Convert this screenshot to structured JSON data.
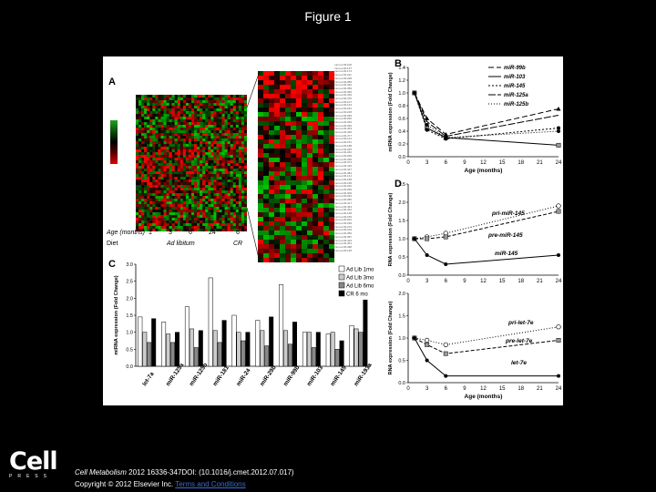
{
  "page_title": "Figure 1",
  "footer": {
    "journal": "Cell Metabolism",
    "citation": " 2012 16336-347DOI: (10.1016/j.cmet.2012.07.017)",
    "copyright": "Copyright © 2012 Elsevier Inc.",
    "terms_link": "Terms and Conditions"
  },
  "logo": {
    "word": "Cell",
    "press": "PRESS"
  },
  "panel_labels": {
    "a": "A",
    "b": "B",
    "c": "C",
    "d": "D"
  },
  "panel_a": {
    "age_label": "Age (months)",
    "age_values": [
      "1",
      "3",
      "6",
      "24",
      "6"
    ],
    "diet_label": "Diet",
    "diet_values": [
      "Ad libitum",
      "CR"
    ]
  },
  "colors": {
    "heat_high": "#e00000",
    "heat_low": "#1fa31f",
    "heat_mid": "#000000"
  },
  "chart_data": [
    {
      "id": "panel-b",
      "type": "line",
      "xlabel": "Age (months)",
      "ylabel": "miRNA expression (Fold Change)",
      "xlim": [
        0,
        24
      ],
      "ylim": [
        0,
        1.4
      ],
      "xticks": [
        0,
        3,
        6,
        9,
        12,
        15,
        18,
        21,
        24
      ],
      "yticks": [
        0,
        0.2,
        0.4,
        0.6,
        0.8,
        1.0,
        1.2,
        1.4
      ],
      "legend_position": "top-right",
      "series": [
        {
          "name": "miR-99b",
          "x": [
            1,
            3,
            6,
            24
          ],
          "values": [
            1.0,
            0.6,
            0.35,
            0.75
          ],
          "dash": "6,3",
          "marker": "triangle"
        },
        {
          "name": "miR-103",
          "x": [
            1,
            3,
            6,
            24
          ],
          "values": [
            1.0,
            0.45,
            0.3,
            0.18
          ],
          "dash": "",
          "marker": "square"
        },
        {
          "name": "miR-145",
          "x": [
            1,
            3,
            6,
            24
          ],
          "values": [
            1.0,
            0.42,
            0.28,
            0.45
          ],
          "dash": "2,2",
          "marker": "circle"
        },
        {
          "name": "miR-125a",
          "x": [
            1,
            3,
            6,
            24
          ],
          "values": [
            1.0,
            0.55,
            0.32,
            0.65
          ],
          "dash": "8,2",
          "marker": "none"
        },
        {
          "name": "miR-125b",
          "x": [
            1,
            3,
            6,
            24
          ],
          "values": [
            1.0,
            0.5,
            0.3,
            0.4
          ],
          "dash": "1,2",
          "marker": "circle"
        }
      ]
    },
    {
      "id": "panel-c",
      "type": "bar",
      "ylabel": "miRNA expression (Fold Change)",
      "ylim": [
        0,
        3.0
      ],
      "yticks": [
        0,
        0.5,
        1.0,
        1.5,
        2.0,
        2.5,
        3.0
      ],
      "legend_position": "top-right",
      "categories": [
        "let-7a",
        "miR-125a",
        "miR-125b",
        "miR-181",
        "miR-24",
        "miR-29b",
        "miR-99b",
        "miR-103",
        "miR-145",
        "miR-193a"
      ],
      "series": [
        {
          "name": "Ad Lib 1mo",
          "color": "#ffffff",
          "values": [
            1.45,
            1.3,
            1.75,
            2.6,
            1.5,
            1.35,
            2.4,
            1.0,
            0.95,
            1.2
          ]
        },
        {
          "name": "Ad Lib 3mo",
          "color": "#cccccc",
          "values": [
            1.0,
            0.95,
            1.1,
            1.05,
            1.0,
            1.05,
            1.05,
            1.0,
            1.0,
            1.1
          ]
        },
        {
          "name": "Ad Lib 6mo",
          "color": "#888888",
          "values": [
            0.7,
            0.7,
            0.55,
            0.7,
            0.75,
            0.6,
            0.65,
            0.55,
            0.5,
            1.0
          ]
        },
        {
          "name": "CR 6 mo",
          "color": "#000000",
          "values": [
            1.4,
            1.0,
            1.05,
            1.35,
            1.0,
            1.45,
            1.3,
            1.0,
            0.75,
            1.95
          ]
        }
      ]
    },
    {
      "id": "panel-d-top",
      "type": "line",
      "ylabel": "RNA expression (Fold Change)",
      "xlim": [
        0,
        24
      ],
      "ylim": [
        0,
        2.5
      ],
      "xticks": [
        0,
        3,
        6,
        9,
        12,
        15,
        18,
        21,
        24
      ],
      "yticks": [
        0,
        0.5,
        1.0,
        1.5,
        2.0,
        2.5
      ],
      "series": [
        {
          "name": "pri-miR-145",
          "x": [
            1,
            3,
            6,
            24
          ],
          "values": [
            1.0,
            1.05,
            1.15,
            1.9
          ],
          "dash": "1,2",
          "marker": "open-circle"
        },
        {
          "name": "pre-miR-145",
          "x": [
            1,
            3,
            6,
            24
          ],
          "values": [
            1.0,
            1.0,
            1.05,
            1.75
          ],
          "dash": "4,2",
          "marker": "square"
        },
        {
          "name": "miR-145",
          "x": [
            1,
            3,
            6,
            24
          ],
          "values": [
            1.0,
            0.55,
            0.3,
            0.55
          ],
          "dash": "",
          "marker": "circle"
        }
      ]
    },
    {
      "id": "panel-d-bottom",
      "type": "line",
      "xlabel": "Age (months)",
      "ylabel": "RNA expression (Fold Change)",
      "xlim": [
        0,
        24
      ],
      "ylim": [
        0,
        2.0
      ],
      "xticks": [
        0,
        3,
        6,
        9,
        12,
        15,
        18,
        21,
        24
      ],
      "yticks": [
        0,
        0.5,
        1.0,
        1.5,
        2.0
      ],
      "series": [
        {
          "name": "pri-let-7e",
          "x": [
            1,
            3,
            6,
            24
          ],
          "values": [
            1.0,
            0.95,
            0.85,
            1.25
          ],
          "dash": "1,2",
          "marker": "open-circle"
        },
        {
          "name": "pre-let-7e",
          "x": [
            1,
            3,
            6,
            24
          ],
          "values": [
            1.0,
            0.85,
            0.65,
            0.95
          ],
          "dash": "4,2",
          "marker": "square"
        },
        {
          "name": "let-7e",
          "x": [
            1,
            3,
            6,
            24
          ],
          "values": [
            1.0,
            0.5,
            0.15,
            0.15
          ],
          "dash": "",
          "marker": "circle"
        }
      ]
    }
  ]
}
